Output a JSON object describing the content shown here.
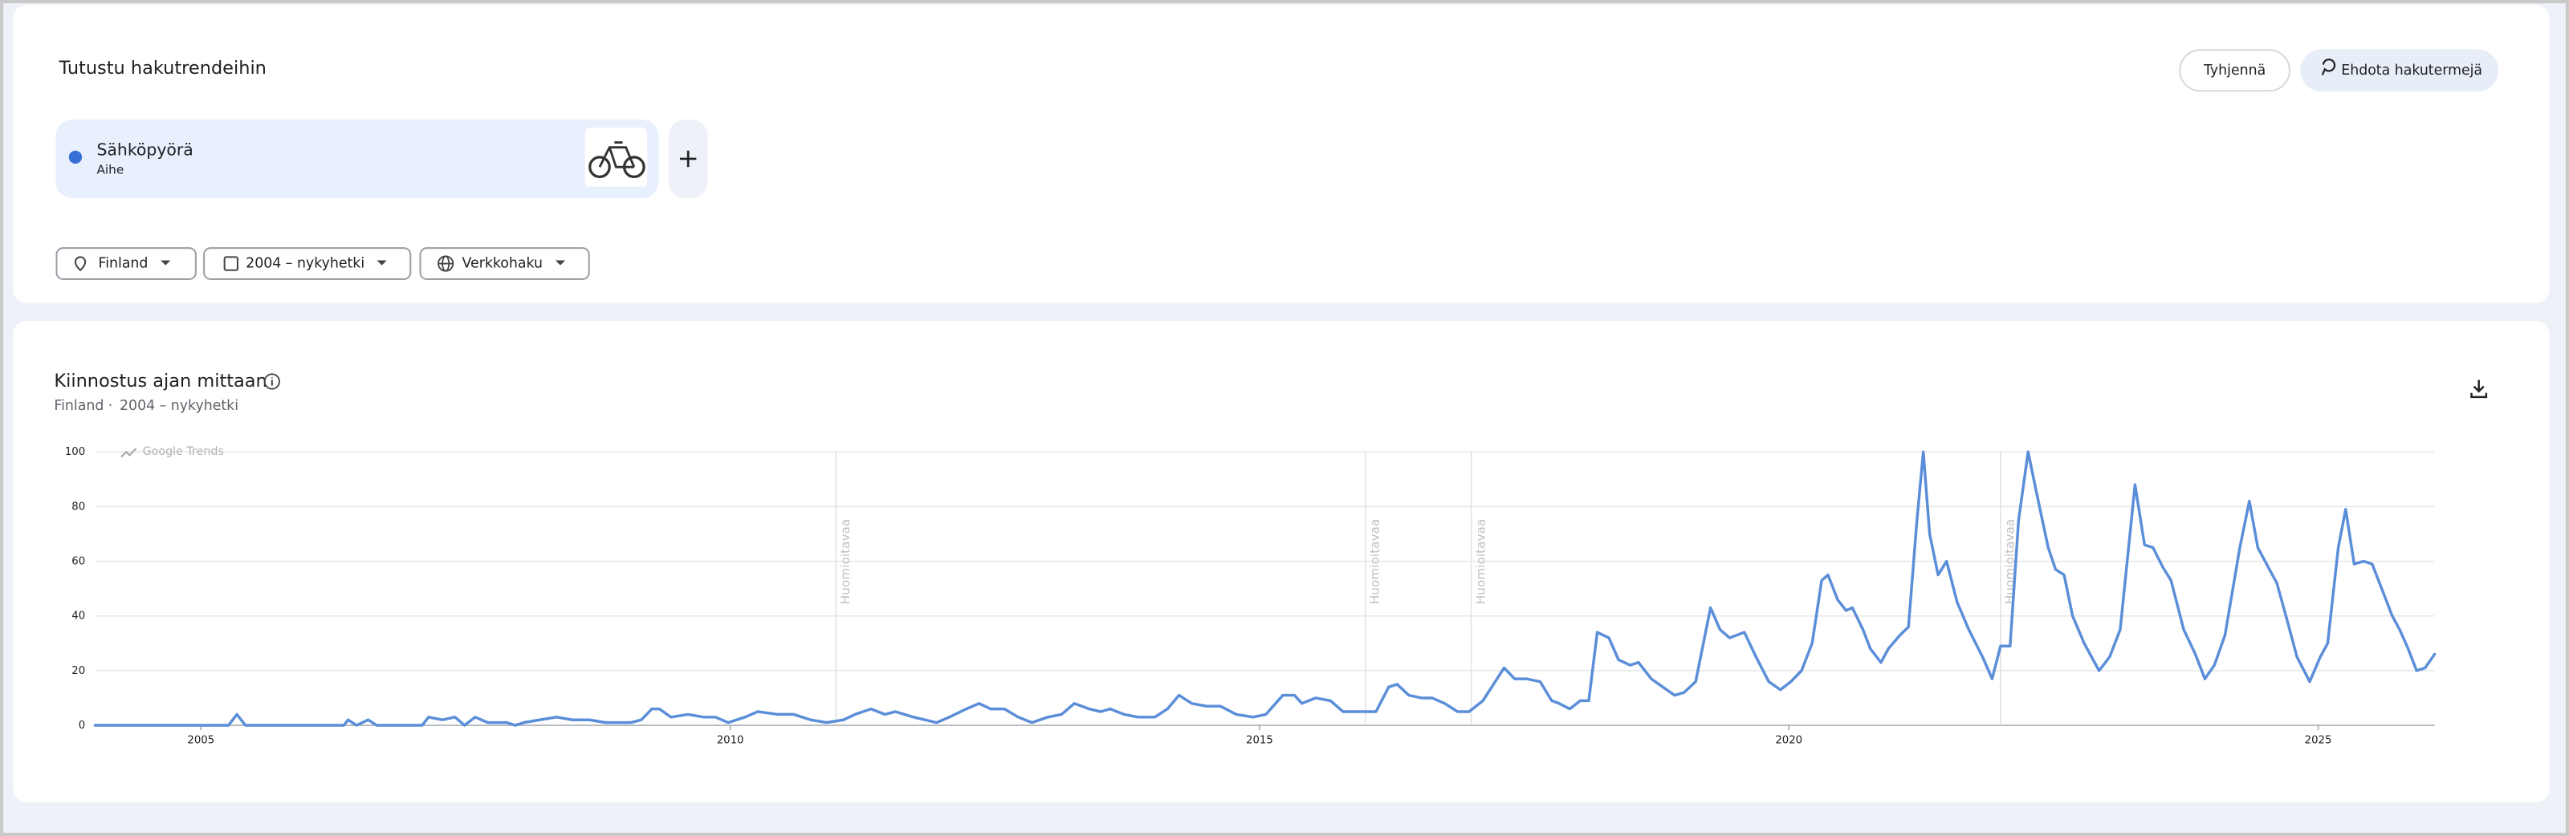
{
  "header": {
    "title": "Tutustu hakutrendeihin",
    "buttons": [
      "Tyhjennä",
      "Ehdota hakutermejä"
    ]
  },
  "terms": [
    {
      "kind": "Aihe",
      "color": "#3a6fd8"
    }
  ],
  "filters": [
    "Finland",
    "2004 – nykyhetki",
    "Verkkohaku"
  ],
  "chart_data": {
    "type": "line",
    "title": "Kiinnostus ajan mittaan",
    "subtitle": [
      "Finland",
      "·",
      "2004 – nykyhetki"
    ],
    "watermark": "Google Trends",
    "x": [
      2004.0,
      2005.26,
      2005.34,
      2005.42,
      2006.35,
      2006.39,
      2006.47,
      2006.58,
      2006.66,
      2007.09,
      2007.15,
      2007.28,
      2007.4,
      2007.49,
      2007.59,
      2007.71,
      2007.89,
      2007.97,
      2008.05,
      2008.2,
      2008.36,
      2008.51,
      2008.67,
      2008.82,
      2009.06,
      2009.16,
      2009.26,
      2009.33,
      2009.44,
      2009.6,
      2009.75,
      2009.86,
      2009.98,
      2010.14,
      2010.26,
      2010.45,
      2010.6,
      2010.76,
      2010.91,
      2011.07,
      2011.18,
      2011.33,
      2011.46,
      2011.56,
      2011.73,
      2011.84,
      2011.95,
      2012.07,
      2012.23,
      2012.35,
      2012.46,
      2012.59,
      2012.72,
      2012.85,
      2013.0,
      2013.13,
      2013.25,
      2013.39,
      2013.5,
      2013.59,
      2013.72,
      2013.85,
      2014.01,
      2014.13,
      2014.24,
      2014.36,
      2014.5,
      2014.63,
      2014.78,
      2014.94,
      2015.06,
      2015.22,
      2015.33,
      2015.4,
      2015.53,
      2015.67,
      2015.79,
      2016.1,
      2016.22,
      2016.3,
      2016.41,
      2016.53,
      2016.63,
      2016.75,
      2016.87,
      2016.98,
      2017.11,
      2017.21,
      2017.31,
      2017.41,
      2017.52,
      2017.65,
      2017.76,
      2017.83,
      2017.93,
      2018.03,
      2018.11,
      2018.19,
      2018.3,
      2018.39,
      2018.5,
      2018.58,
      2018.7,
      2018.81,
      2018.92,
      2019.01,
      2019.12,
      2019.26,
      2019.35,
      2019.44,
      2019.58,
      2019.69,
      2019.81,
      2019.92,
      2020.02,
      2020.12,
      2020.22,
      2020.31,
      2020.37,
      2020.46,
      2020.54,
      2020.6,
      2020.7,
      2020.77,
      2020.87,
      2020.94,
      2021.05,
      2021.13,
      2021.21,
      2021.27,
      2021.33,
      2021.41,
      2021.49,
      2021.59,
      2021.7,
      2021.83,
      2021.92,
      2022.0,
      2022.09,
      2022.17,
      2022.26,
      2022.34,
      2022.45,
      2022.52,
      2022.6,
      2022.68,
      2022.79,
      2022.93,
      2023.03,
      2023.13,
      2023.27,
      2023.36,
      2023.44,
      2023.53,
      2023.61,
      2023.73,
      2023.84,
      2023.93,
      2024.02,
      2024.12,
      2024.26,
      2024.35,
      2024.43,
      2024.54,
      2024.61,
      2024.71,
      2024.8,
      2024.92,
      2025.02,
      2025.09,
      2025.19,
      2025.26,
      2025.34,
      2025.43,
      2025.51,
      2025.6,
      2025.7,
      2025.77,
      2025.85,
      2025.93,
      2026.01,
      2026.1
    ],
    "series": [
      {
        "name": "Sähköpyörä",
        "color": "#5b8ed8",
        "values": [
          0,
          0,
          4,
          0,
          0,
          2,
          0,
          2,
          0,
          0,
          3,
          2,
          3,
          0,
          3,
          1,
          1,
          0,
          1,
          2,
          3,
          2,
          2,
          1,
          1,
          2,
          6,
          6,
          3,
          4,
          3,
          3,
          1,
          3,
          5,
          4,
          4,
          2,
          1,
          2,
          4,
          6,
          4,
          5,
          3,
          2,
          1,
          3,
          6,
          8,
          6,
          6,
          3,
          1,
          3,
          4,
          8,
          6,
          5,
          6,
          4,
          3,
          3,
          6,
          11,
          8,
          7,
          7,
          4,
          3,
          4,
          11,
          11,
          8,
          10,
          9,
          5,
          5,
          14,
          15,
          11,
          10,
          10,
          8,
          5,
          5,
          9,
          15,
          21,
          17,
          17,
          16,
          9,
          8,
          6,
          9,
          9,
          34,
          32,
          24,
          22,
          23,
          17,
          14,
          11,
          12,
          16,
          43,
          35,
          32,
          34,
          25,
          16,
          13,
          16,
          20,
          30,
          53,
          55,
          46,
          42,
          43,
          35,
          28,
          23,
          28,
          33,
          36,
          75,
          100,
          70,
          55,
          60,
          45,
          35,
          25,
          17,
          29,
          29,
          75,
          100,
          85,
          65,
          57,
          55,
          40,
          30,
          20,
          25,
          35,
          88,
          66,
          65,
          58,
          53,
          35,
          26,
          17,
          22,
          33,
          65,
          82,
          65,
          57,
          52,
          38,
          25,
          16,
          25,
          30,
          65,
          79,
          59,
          60,
          59,
          50,
          40,
          35,
          28,
          20,
          21,
          26
        ]
      }
    ],
    "xlim": [
      2004.0,
      2026.1
    ],
    "ylim": [
      0,
      100
    ],
    "xticks": [
      2005,
      2010,
      2015,
      2020,
      2025
    ],
    "yticks": [
      0,
      20,
      40,
      60,
      80,
      100
    ],
    "grid": true,
    "annotations": [
      {
        "x": 2011.0,
        "text": "Huomioitavaa"
      },
      {
        "x": 2016.0,
        "text": "Huomioitavaa"
      },
      {
        "x": 2017.0,
        "text": "Huomioitavaa"
      },
      {
        "x": 2022.0,
        "text": "Huomioitavaa"
      }
    ]
  }
}
